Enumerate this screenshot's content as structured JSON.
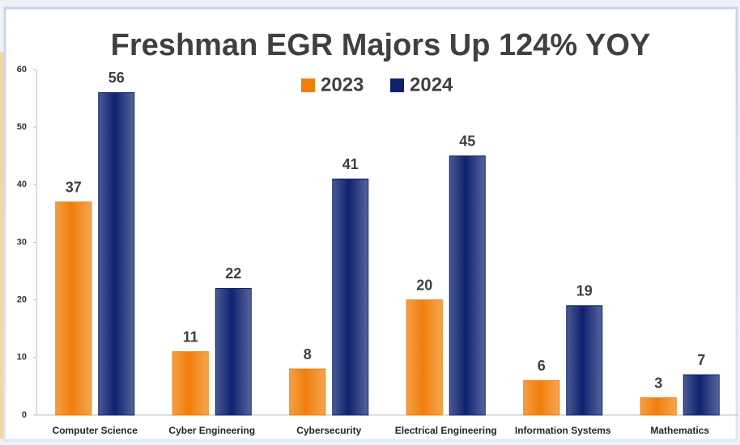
{
  "chart_data": {
    "type": "bar",
    "title": "Freshman EGR Majors Up 124% YOY",
    "categories": [
      "Computer Science",
      "Cyber Engineering",
      "Cybersecurity",
      "Electrical Engineering",
      "Information Systems",
      "Mathematics"
    ],
    "series": [
      {
        "name": "2023",
        "color": "#f07f09",
        "values": [
          37,
          11,
          8,
          20,
          6,
          3
        ]
      },
      {
        "name": "2024",
        "color": "#0f2270",
        "values": [
          56,
          22,
          41,
          45,
          19,
          7
        ]
      }
    ],
    "ylim": [
      0,
      60
    ],
    "yticks": [
      0,
      10,
      20,
      30,
      40,
      50,
      60
    ],
    "grid": false,
    "legend": "top"
  }
}
